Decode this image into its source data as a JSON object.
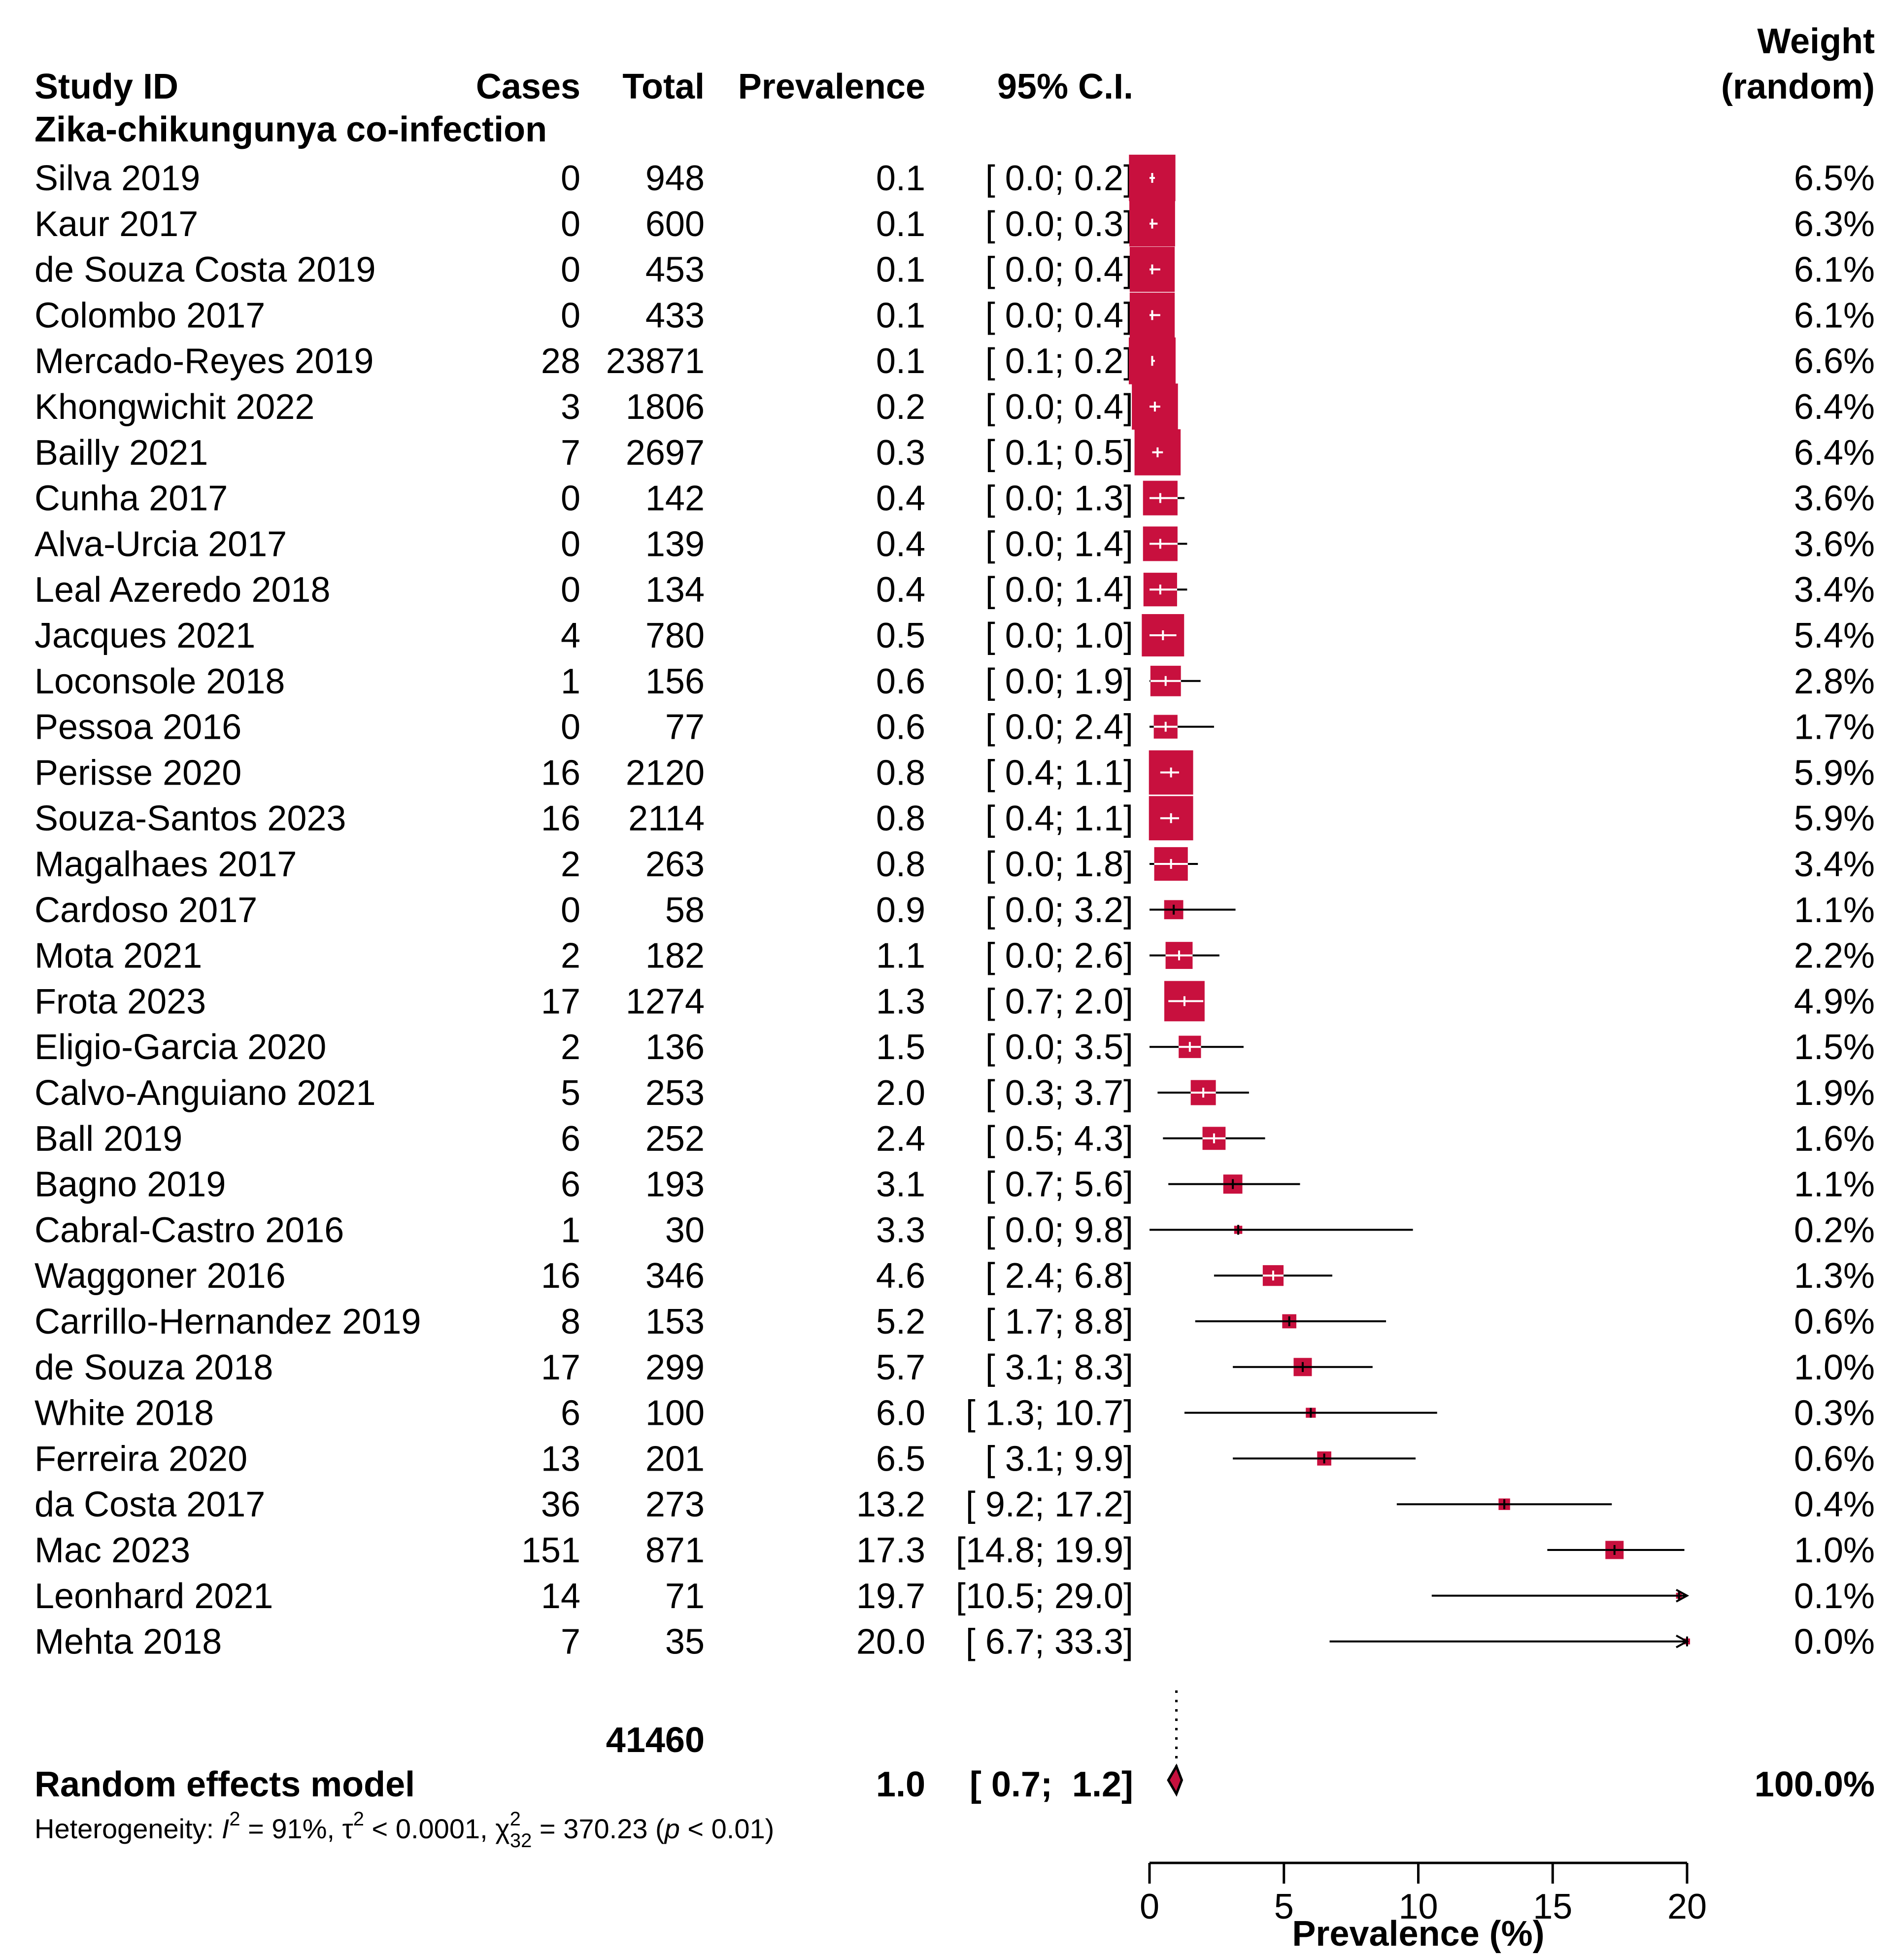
{
  "colors": {
    "box": "#C8103E",
    "line": "#000000",
    "background": "#FFFFFF"
  },
  "headers": {
    "study": "Study ID",
    "cases": "Cases",
    "total": "Total",
    "prevalence": "Prevalence",
    "ci": "95% C.I.",
    "weight_line1": "Weight",
    "weight_line2": "(random)"
  },
  "subgroup_title": "Zika-chikungunya co-infection",
  "summary": {
    "total_n": "41460",
    "label": "Random effects model",
    "prevalence": "1.0",
    "ci": "[ 0.7;  1.2]",
    "weight": "100.0%"
  },
  "heterogeneity": {
    "prefix": "Heterogeneity: ",
    "i2_symbol": "I",
    "i2_exp": "2",
    "i2_value": " = 91%, ",
    "tau_symbol": "τ",
    "tau_exp": "2",
    "tau_value": " < 0.0001, ",
    "chi_symbol": "χ",
    "chi_sup": "2",
    "chi_sub": "32",
    "chi_value": " = 370.23 (",
    "p_symbol": "p",
    "p_value": " < 0.01)"
  },
  "chart_data": {
    "type": "forest",
    "xlabel": "Prevalence (%)",
    "xlim": [
      0,
      20
    ],
    "xticks": [
      "0",
      "5",
      "10",
      "15",
      "20"
    ],
    "reference_line": 1.0,
    "summary": {
      "estimate": 1.0,
      "lower": 0.7,
      "upper": 1.2
    },
    "studies": [
      {
        "study": "Silva 2019",
        "cases": "0",
        "total": "948",
        "prev": "0.1",
        "ci": "[ 0.0;  0.2]",
        "weight": "6.5%",
        "est": 0.1,
        "lo": 0.0,
        "hi": 0.2,
        "w": 6.5
      },
      {
        "study": "Kaur 2017",
        "cases": "0",
        "total": "600",
        "prev": "0.1",
        "ci": "[ 0.0;  0.3]",
        "weight": "6.3%",
        "est": 0.1,
        "lo": 0.0,
        "hi": 0.3,
        "w": 6.3
      },
      {
        "study": "de Souza Costa 2019",
        "cases": "0",
        "total": "453",
        "prev": "0.1",
        "ci": "[ 0.0;  0.4]",
        "weight": "6.1%",
        "est": 0.1,
        "lo": 0.0,
        "hi": 0.4,
        "w": 6.1
      },
      {
        "study": "Colombo 2017",
        "cases": "0",
        "total": "433",
        "prev": "0.1",
        "ci": "[ 0.0;  0.4]",
        "weight": "6.1%",
        "est": 0.1,
        "lo": 0.0,
        "hi": 0.4,
        "w": 6.1
      },
      {
        "study": "Mercado-Reyes 2019",
        "cases": "28",
        "total": "23871",
        "prev": "0.1",
        "ci": "[ 0.1;  0.2]",
        "weight": "6.6%",
        "est": 0.1,
        "lo": 0.1,
        "hi": 0.2,
        "w": 6.6
      },
      {
        "study": "Khongwichit 2022",
        "cases": "3",
        "total": "1806",
        "prev": "0.2",
        "ci": "[ 0.0;  0.4]",
        "weight": "6.4%",
        "est": 0.2,
        "lo": 0.0,
        "hi": 0.4,
        "w": 6.4
      },
      {
        "study": "Bailly 2021",
        "cases": "7",
        "total": "2697",
        "prev": "0.3",
        "ci": "[ 0.1;  0.5]",
        "weight": "6.4%",
        "est": 0.3,
        "lo": 0.1,
        "hi": 0.5,
        "w": 6.4
      },
      {
        "study": "Cunha 2017",
        "cases": "0",
        "total": "142",
        "prev": "0.4",
        "ci": "[ 0.0;  1.3]",
        "weight": "3.6%",
        "est": 0.4,
        "lo": 0.0,
        "hi": 1.3,
        "w": 3.6
      },
      {
        "study": "Alva-Urcia 2017",
        "cases": "0",
        "total": "139",
        "prev": "0.4",
        "ci": "[ 0.0;  1.4]",
        "weight": "3.6%",
        "est": 0.4,
        "lo": 0.0,
        "hi": 1.4,
        "w": 3.6
      },
      {
        "study": "Leal Azeredo 2018",
        "cases": "0",
        "total": "134",
        "prev": "0.4",
        "ci": "[ 0.0;  1.4]",
        "weight": "3.4%",
        "est": 0.4,
        "lo": 0.0,
        "hi": 1.4,
        "w": 3.4
      },
      {
        "study": "Jacques 2021",
        "cases": "4",
        "total": "780",
        "prev": "0.5",
        "ci": "[ 0.0;  1.0]",
        "weight": "5.4%",
        "est": 0.5,
        "lo": 0.0,
        "hi": 1.0,
        "w": 5.4
      },
      {
        "study": "Loconsole 2018",
        "cases": "1",
        "total": "156",
        "prev": "0.6",
        "ci": "[ 0.0;  1.9]",
        "weight": "2.8%",
        "est": 0.6,
        "lo": 0.0,
        "hi": 1.9,
        "w": 2.8
      },
      {
        "study": "Pessoa 2016",
        "cases": "0",
        "total": "77",
        "prev": "0.6",
        "ci": "[ 0.0;  2.4]",
        "weight": "1.7%",
        "est": 0.6,
        "lo": 0.0,
        "hi": 2.4,
        "w": 1.7
      },
      {
        "study": "Perisse 2020",
        "cases": "16",
        "total": "2120",
        "prev": "0.8",
        "ci": "[ 0.4;  1.1]",
        "weight": "5.9%",
        "est": 0.8,
        "lo": 0.4,
        "hi": 1.1,
        "w": 5.9
      },
      {
        "study": "Souza-Santos 2023",
        "cases": "16",
        "total": "2114",
        "prev": "0.8",
        "ci": "[ 0.4;  1.1]",
        "weight": "5.9%",
        "est": 0.8,
        "lo": 0.4,
        "hi": 1.1,
        "w": 5.9
      },
      {
        "study": "Magalhaes 2017",
        "cases": "2",
        "total": "263",
        "prev": "0.8",
        "ci": "[ 0.0;  1.8]",
        "weight": "3.4%",
        "est": 0.8,
        "lo": 0.0,
        "hi": 1.8,
        "w": 3.4
      },
      {
        "study": "Cardoso 2017",
        "cases": "0",
        "total": "58",
        "prev": "0.9",
        "ci": "[ 0.0;  3.2]",
        "weight": "1.1%",
        "est": 0.9,
        "lo": 0.0,
        "hi": 3.2,
        "w": 1.1
      },
      {
        "study": "Mota 2021",
        "cases": "2",
        "total": "182",
        "prev": "1.1",
        "ci": "[ 0.0;  2.6]",
        "weight": "2.2%",
        "est": 1.1,
        "lo": 0.0,
        "hi": 2.6,
        "w": 2.2
      },
      {
        "study": "Frota 2023",
        "cases": "17",
        "total": "1274",
        "prev": "1.3",
        "ci": "[ 0.7;  2.0]",
        "weight": "4.9%",
        "est": 1.3,
        "lo": 0.7,
        "hi": 2.0,
        "w": 4.9
      },
      {
        "study": "Eligio-Garcia 2020",
        "cases": "2",
        "total": "136",
        "prev": "1.5",
        "ci": "[ 0.0;  3.5]",
        "weight": "1.5%",
        "est": 1.5,
        "lo": 0.0,
        "hi": 3.5,
        "w": 1.5
      },
      {
        "study": "Calvo-Anguiano 2021",
        "cases": "5",
        "total": "253",
        "prev": "2.0",
        "ci": "[ 0.3;  3.7]",
        "weight": "1.9%",
        "est": 2.0,
        "lo": 0.3,
        "hi": 3.7,
        "w": 1.9
      },
      {
        "study": "Ball 2019",
        "cases": "6",
        "total": "252",
        "prev": "2.4",
        "ci": "[ 0.5;  4.3]",
        "weight": "1.6%",
        "est": 2.4,
        "lo": 0.5,
        "hi": 4.3,
        "w": 1.6
      },
      {
        "study": "Bagno 2019",
        "cases": "6",
        "total": "193",
        "prev": "3.1",
        "ci": "[ 0.7;  5.6]",
        "weight": "1.1%",
        "est": 3.1,
        "lo": 0.7,
        "hi": 5.6,
        "w": 1.1
      },
      {
        "study": "Cabral-Castro 2016",
        "cases": "1",
        "total": "30",
        "prev": "3.3",
        "ci": "[ 0.0;  9.8]",
        "weight": "0.2%",
        "est": 3.3,
        "lo": 0.0,
        "hi": 9.8,
        "w": 0.2
      },
      {
        "study": "Waggoner 2016",
        "cases": "16",
        "total": "346",
        "prev": "4.6",
        "ci": "[ 2.4;  6.8]",
        "weight": "1.3%",
        "est": 4.6,
        "lo": 2.4,
        "hi": 6.8,
        "w": 1.3
      },
      {
        "study": "Carrillo-Hernandez 2019",
        "cases": "8",
        "total": "153",
        "prev": "5.2",
        "ci": "[ 1.7;  8.8]",
        "weight": "0.6%",
        "est": 5.2,
        "lo": 1.7,
        "hi": 8.8,
        "w": 0.6
      },
      {
        "study": "de Souza 2018",
        "cases": "17",
        "total": "299",
        "prev": "5.7",
        "ci": "[ 3.1;  8.3]",
        "weight": "1.0%",
        "est": 5.7,
        "lo": 3.1,
        "hi": 8.3,
        "w": 1.0
      },
      {
        "study": "White 2018",
        "cases": "6",
        "total": "100",
        "prev": "6.0",
        "ci": "[ 1.3; 10.7]",
        "weight": "0.3%",
        "est": 6.0,
        "lo": 1.3,
        "hi": 10.7,
        "w": 0.3
      },
      {
        "study": "Ferreira 2020",
        "cases": "13",
        "total": "201",
        "prev": "6.5",
        "ci": "[ 3.1;  9.9]",
        "weight": "0.6%",
        "est": 6.5,
        "lo": 3.1,
        "hi": 9.9,
        "w": 0.6
      },
      {
        "study": "da Costa 2017",
        "cases": "36",
        "total": "273",
        "prev": "13.2",
        "ci": "[ 9.2; 17.2]",
        "weight": "0.4%",
        "est": 13.2,
        "lo": 9.2,
        "hi": 17.2,
        "w": 0.4
      },
      {
        "study": "Mac 2023",
        "cases": "151",
        "total": "871",
        "prev": "17.3",
        "ci": "[14.8; 19.9]",
        "weight": "1.0%",
        "est": 17.3,
        "lo": 14.8,
        "hi": 19.9,
        "w": 1.0
      },
      {
        "study": "Leonhard 2021",
        "cases": "14",
        "total": "71",
        "prev": "19.7",
        "ci": "[10.5; 29.0]",
        "weight": "0.1%",
        "est": 19.7,
        "lo": 10.5,
        "hi": 29.0,
        "w": 0.1
      },
      {
        "study": "Mehta 2018",
        "cases": "7",
        "total": "35",
        "prev": "20.0",
        "ci": "[ 6.7; 33.3]",
        "weight": "0.0%",
        "est": 20.0,
        "lo": 6.7,
        "hi": 33.3,
        "w": 0.0
      }
    ]
  }
}
